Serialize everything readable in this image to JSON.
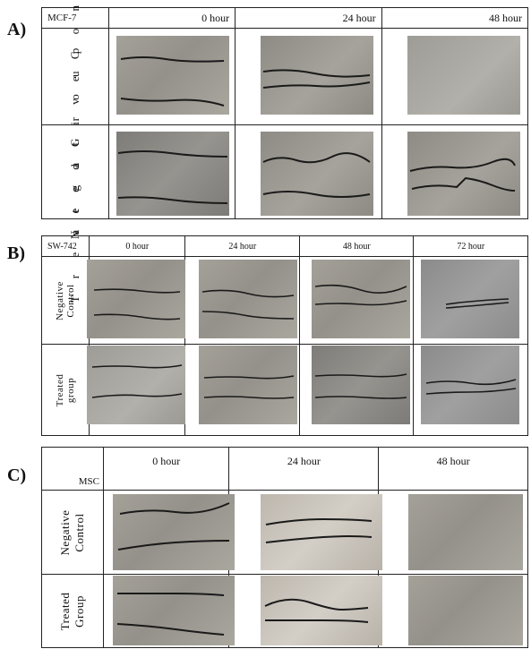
{
  "panels": [
    {
      "letter": "A)",
      "cell_line": "MCF-7",
      "columns": [
        "0 hour",
        "24 hour",
        "48 hour"
      ],
      "rows": [
        "N e g a t i v e   C o n t r o l",
        "T r e a t e d   G r o u p"
      ]
    },
    {
      "letter": "B)",
      "cell_line": "SW-742",
      "columns": [
        "0 hour",
        "24 hour",
        "48 hour",
        "72 hour"
      ],
      "rows": [
        "Negative Control",
        "Treated group"
      ]
    },
    {
      "letter": "C)",
      "cell_line": "MSC",
      "columns": [
        "0 hour",
        "24 hour",
        "48 hour"
      ],
      "rows": [
        "Negative Control",
        "Treated Group"
      ]
    }
  ]
}
